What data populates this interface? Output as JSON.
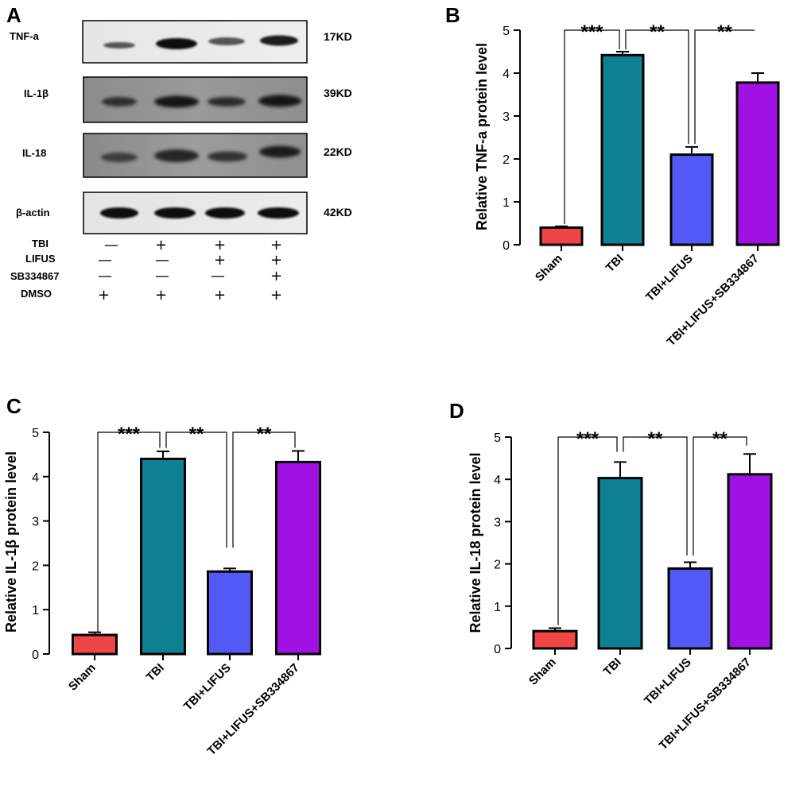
{
  "colors": {
    "Sham": "#f04545",
    "TBI": "#0d8092",
    "TBI+LIFUS": "#5359f5",
    "TBI+LIFUS+SB334867": "#a012e4"
  },
  "panel_a": {
    "letter": "A",
    "blots": [
      {
        "label": "TNF-a",
        "kd": "17KD"
      },
      {
        "label": "IL-1β",
        "kd": "39KD"
      },
      {
        "label": "IL-18",
        "kd": "22KD"
      },
      {
        "label": "β-actin",
        "kd": "42KD"
      }
    ],
    "treatments": [
      {
        "label": "TBI",
        "signs": [
          "—",
          "+",
          "+",
          "+"
        ]
      },
      {
        "label": "LIFUS",
        "signs": [
          "—",
          "—",
          "+",
          "+"
        ]
      },
      {
        "label": "SB334867",
        "signs": [
          "—",
          "—",
          "—",
          "+"
        ]
      },
      {
        "label": "DMSO",
        "signs": [
          "+",
          "+",
          "+",
          "+"
        ]
      }
    ]
  },
  "chart_data": [
    {
      "panel": "B",
      "type": "bar",
      "title": "",
      "xlabel": "",
      "ylabel": "Relative TNF-a protein level",
      "ylim": [
        0,
        5
      ],
      "yticks": [
        0,
        1,
        2,
        3,
        4,
        5
      ],
      "categories": [
        "Sham",
        "TBI",
        "TBI+LIFUS",
        "TBI+LIFUS+SB334867"
      ],
      "values": [
        0.4,
        4.42,
        2.1,
        3.78
      ],
      "errors": [
        0.03,
        0.08,
        0.18,
        0.22
      ],
      "significance": [
        {
          "from": 0,
          "to": 1,
          "label": "***",
          "base": [
            0.48,
            4.55
          ]
        },
        {
          "from": 1,
          "to": 2,
          "label": "**",
          "base": [
            4.55,
            2.35
          ]
        },
        {
          "from": 2,
          "to": 3,
          "label": "**",
          "base": [
            2.35,
            5.0
          ]
        }
      ]
    },
    {
      "panel": "C",
      "type": "bar",
      "title": "",
      "xlabel": "",
      "ylabel": "Relative IL-1β protein level",
      "ylim": [
        0,
        5
      ],
      "yticks": [
        0,
        1,
        2,
        3,
        4,
        5
      ],
      "categories": [
        "Sham",
        "TBI",
        "TBI+LIFUS",
        "TBI+LIFUS+SB334867"
      ],
      "values": [
        0.43,
        4.4,
        1.86,
        4.33
      ],
      "errors": [
        0.06,
        0.17,
        0.07,
        0.25
      ],
      "significance": [
        {
          "from": 0,
          "to": 1,
          "label": "***",
          "base": [
            0.5,
            4.65
          ]
        },
        {
          "from": 1,
          "to": 2,
          "label": "**",
          "base": [
            4.65,
            2.4
          ]
        },
        {
          "from": 2,
          "to": 3,
          "label": "**",
          "base": [
            2.4,
            4.65
          ]
        }
      ]
    },
    {
      "panel": "D",
      "type": "bar",
      "title": "",
      "xlabel": "",
      "ylabel": "Relative IL-18 protein level",
      "ylim": [
        0,
        5
      ],
      "yticks": [
        0,
        1,
        2,
        3,
        4,
        5
      ],
      "categories": [
        "Sham",
        "TBI",
        "TBI+LIFUS",
        "TBI+LIFUS+SB334867"
      ],
      "values": [
        0.41,
        4.03,
        1.89,
        4.12
      ],
      "errors": [
        0.07,
        0.38,
        0.15,
        0.48
      ],
      "significance": [
        {
          "from": 0,
          "to": 1,
          "label": "***",
          "base": [
            0.55,
            4.65
          ]
        },
        {
          "from": 1,
          "to": 2,
          "label": "**",
          "base": [
            4.65,
            2.2
          ]
        },
        {
          "from": 2,
          "to": 3,
          "label": "**",
          "base": [
            2.2,
            4.8
          ]
        }
      ]
    }
  ]
}
